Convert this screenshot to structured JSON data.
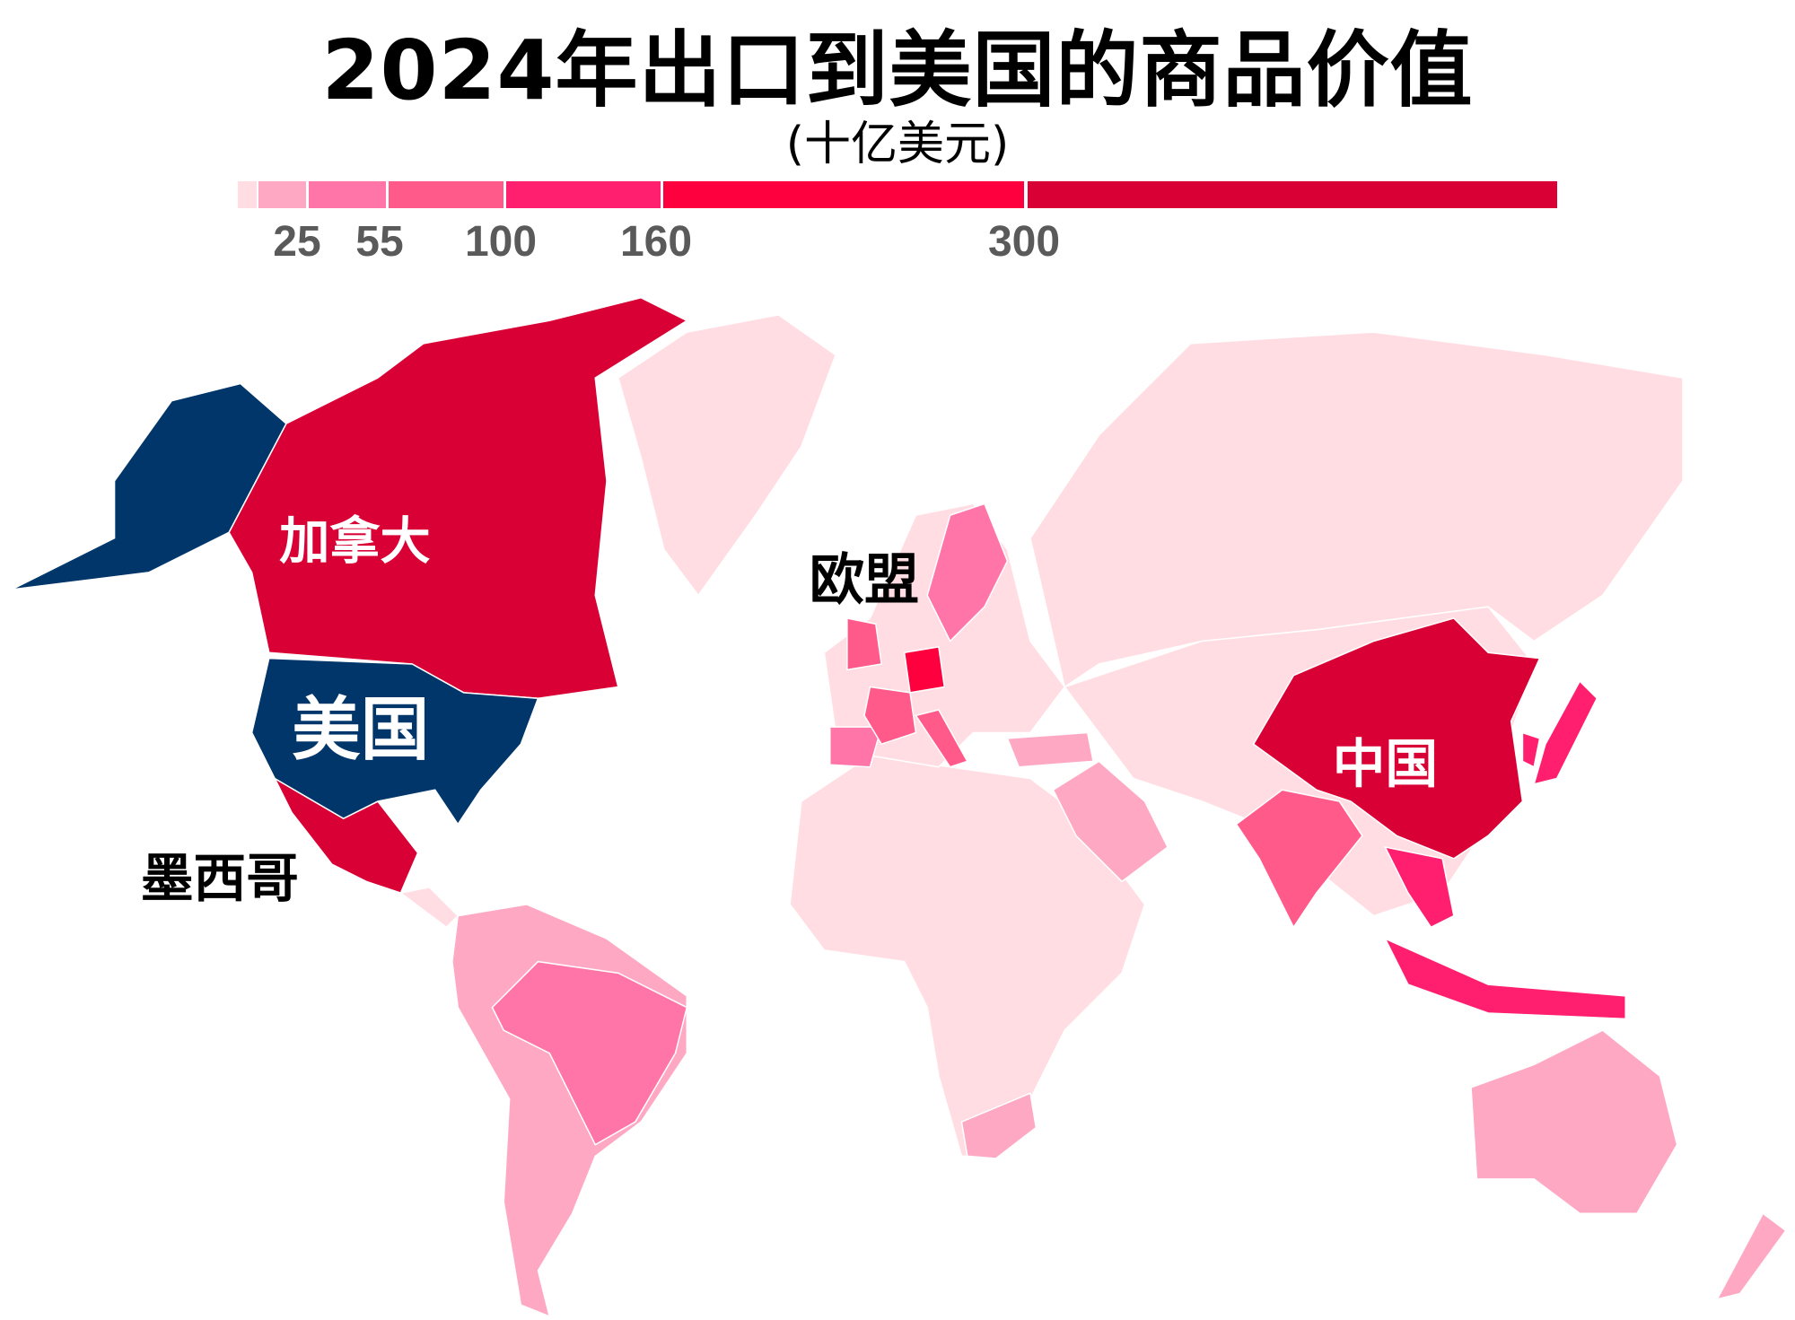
{
  "title": "2024年出口到美国的商品价值",
  "subtitle": "(十亿美元)",
  "legend": {
    "colors": [
      "#FFDDE3",
      "#FFA8C4",
      "#FF75A8",
      "#FF5A8A",
      "#FF1F6E",
      "#FF003F",
      "#D90035"
    ],
    "ticks": [
      "25",
      "55",
      "100",
      "160",
      "300"
    ]
  },
  "us_color": "#00366A",
  "labels": {
    "canada": "加拿大",
    "usa": "美国",
    "mexico": "墨西哥",
    "eu": "欧盟",
    "china": "中国"
  }
}
